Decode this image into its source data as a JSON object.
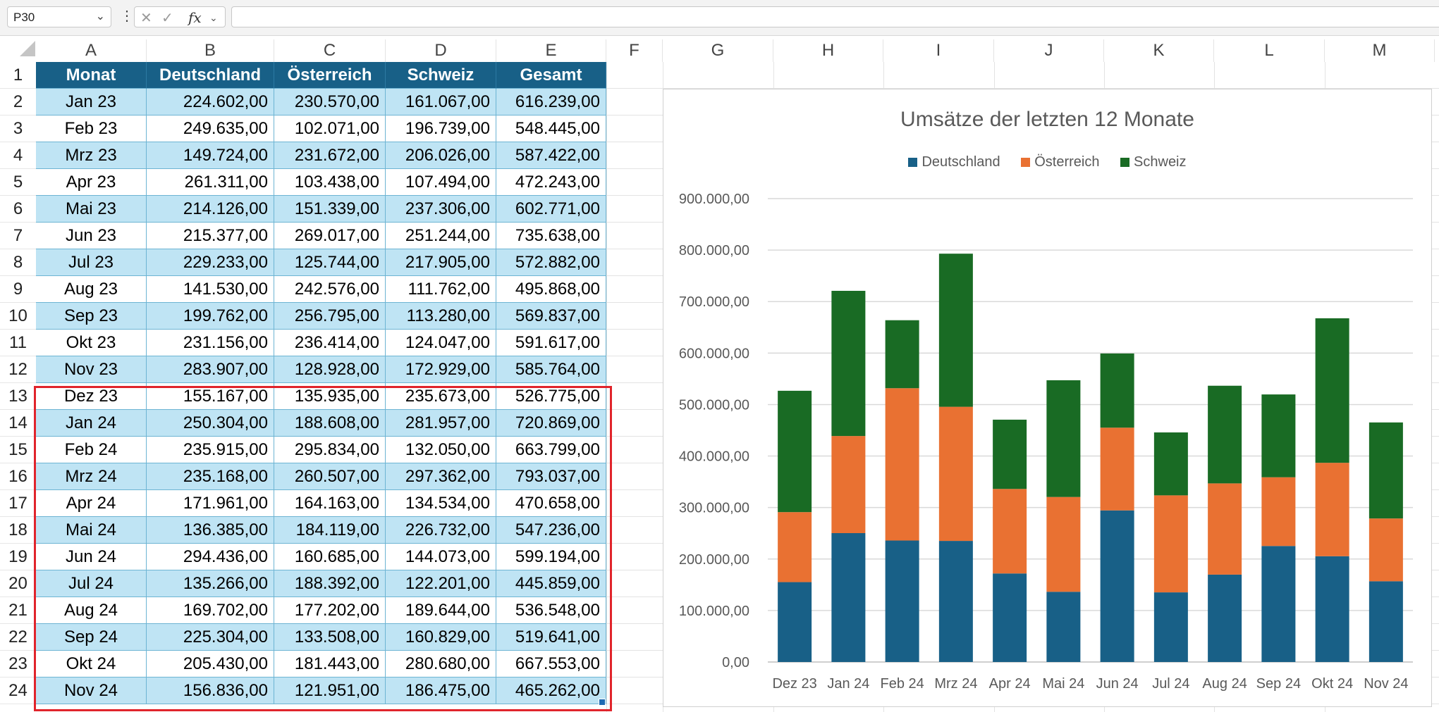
{
  "formula_bar": {
    "name_box": "P30",
    "fx_label": "fx",
    "formula": ""
  },
  "columns": [
    "A",
    "B",
    "C",
    "D",
    "E",
    "F",
    "G",
    "H",
    "I",
    "J",
    "K",
    "L",
    "M"
  ],
  "table": {
    "headers": [
      "Monat",
      "Deutschland",
      "Österreich",
      "Schweiz",
      "Gesamt"
    ],
    "rows": [
      [
        "Jan 23",
        "224.602,00",
        "230.570,00",
        "161.067,00",
        "616.239,00"
      ],
      [
        "Feb 23",
        "249.635,00",
        "102.071,00",
        "196.739,00",
        "548.445,00"
      ],
      [
        "Mrz 23",
        "149.724,00",
        "231.672,00",
        "206.026,00",
        "587.422,00"
      ],
      [
        "Apr 23",
        "261.311,00",
        "103.438,00",
        "107.494,00",
        "472.243,00"
      ],
      [
        "Mai 23",
        "214.126,00",
        "151.339,00",
        "237.306,00",
        "602.771,00"
      ],
      [
        "Jun 23",
        "215.377,00",
        "269.017,00",
        "251.244,00",
        "735.638,00"
      ],
      [
        "Jul 23",
        "229.233,00",
        "125.744,00",
        "217.905,00",
        "572.882,00"
      ],
      [
        "Aug 23",
        "141.530,00",
        "242.576,00",
        "111.762,00",
        "495.868,00"
      ],
      [
        "Sep 23",
        "199.762,00",
        "256.795,00",
        "113.280,00",
        "569.837,00"
      ],
      [
        "Okt 23",
        "231.156,00",
        "236.414,00",
        "124.047,00",
        "591.617,00"
      ],
      [
        "Nov 23",
        "283.907,00",
        "128.928,00",
        "172.929,00",
        "585.764,00"
      ],
      [
        "Dez 23",
        "155.167,00",
        "135.935,00",
        "235.673,00",
        "526.775,00"
      ],
      [
        "Jan 24",
        "250.304,00",
        "188.608,00",
        "281.957,00",
        "720.869,00"
      ],
      [
        "Feb 24",
        "235.915,00",
        "295.834,00",
        "132.050,00",
        "663.799,00"
      ],
      [
        "Mrz 24",
        "235.168,00",
        "260.507,00",
        "297.362,00",
        "793.037,00"
      ],
      [
        "Apr 24",
        "171.961,00",
        "164.163,00",
        "134.534,00",
        "470.658,00"
      ],
      [
        "Mai 24",
        "136.385,00",
        "184.119,00",
        "226.732,00",
        "547.236,00"
      ],
      [
        "Jun 24",
        "294.436,00",
        "160.685,00",
        "144.073,00",
        "599.194,00"
      ],
      [
        "Jul 24",
        "135.266,00",
        "188.392,00",
        "122.201,00",
        "445.859,00"
      ],
      [
        "Aug 24",
        "169.702,00",
        "177.202,00",
        "189.644,00",
        "536.548,00"
      ],
      [
        "Sep 24",
        "225.304,00",
        "133.508,00",
        "160.829,00",
        "519.641,00"
      ],
      [
        "Okt 24",
        "205.430,00",
        "181.443,00",
        "280.680,00",
        "667.553,00"
      ],
      [
        "Nov 24",
        "156.836,00",
        "121.951,00",
        "186.475,00",
        "465.262,00"
      ]
    ]
  },
  "colors": {
    "deutschland": "#186087",
    "oesterreich": "#e97132",
    "schweiz": "#196b24",
    "header_fill": "#186087",
    "band_fill": "#bfe4f4",
    "selection": "#e0242b"
  },
  "chart_data": {
    "type": "bar",
    "stacked": true,
    "title": "Umsätze der letzten 12 Monate",
    "categories": [
      "Dez 23",
      "Jan 24",
      "Feb 24",
      "Mrz 24",
      "Apr 24",
      "Mai 24",
      "Jun 24",
      "Jul 24",
      "Aug 24",
      "Sep 24",
      "Okt 24",
      "Nov 24"
    ],
    "series": [
      {
        "name": "Deutschland",
        "values": [
          155167,
          250304,
          235915,
          235168,
          171961,
          136385,
          294436,
          135266,
          169702,
          225304,
          205430,
          156836
        ]
      },
      {
        "name": "Österreich",
        "values": [
          135935,
          188608,
          295834,
          260507,
          164163,
          184119,
          160685,
          188392,
          177202,
          133508,
          181443,
          121951
        ]
      },
      {
        "name": "Schweiz",
        "values": [
          235673,
          281957,
          132050,
          297362,
          134534,
          226732,
          144073,
          122201,
          189644,
          160829,
          280680,
          186475
        ]
      }
    ],
    "ylim": [
      0,
      900000
    ],
    "ytick_labels": [
      "0,00",
      "100.000,00",
      "200.000,00",
      "300.000,00",
      "400.000,00",
      "500.000,00",
      "600.000,00",
      "700.000,00",
      "800.000,00",
      "900.000,00"
    ],
    "grid": true,
    "legend_position": "top"
  }
}
